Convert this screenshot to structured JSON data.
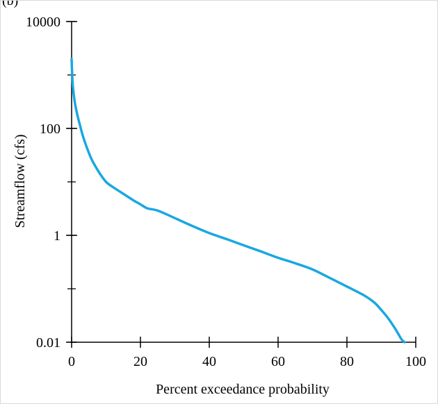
{
  "panel_label": "(b)",
  "chart_data": {
    "type": "line",
    "title": "",
    "xlabel": "Percent exceedance probability",
    "ylabel": "Streamflow (cfs)",
    "xlim": [
      0,
      100
    ],
    "ylim": [
      0.01,
      10000
    ],
    "yscale": "log",
    "xticks": [
      0,
      20,
      40,
      60,
      80,
      100
    ],
    "xtick_labels": [
      "0",
      "20",
      "40",
      "60",
      "80",
      "100"
    ],
    "yticks": [
      0.01,
      1,
      100,
      10000
    ],
    "ytick_labels": [
      "0.01",
      "1",
      "100",
      "10000"
    ],
    "grid": false,
    "legend": "none",
    "series": [
      {
        "color": "#1aa7e1",
        "x": [
          0,
          0.3,
          0.8,
          1.5,
          2.5,
          3.5,
          5,
          6,
          8,
          10,
          12,
          15,
          18,
          20,
          22,
          25,
          30,
          35,
          40,
          45,
          50,
          55,
          60,
          65,
          70,
          75,
          80,
          85,
          88,
          90,
          92,
          94,
          95,
          96,
          96.8
        ],
        "y": [
          2000,
          700,
          350,
          200,
          110,
          65,
          35,
          25,
          15,
          10,
          8,
          6,
          4.5,
          3.8,
          3.2,
          2.9,
          2.1,
          1.5,
          1.1,
          0.85,
          0.65,
          0.5,
          0.38,
          0.3,
          0.23,
          0.16,
          0.11,
          0.075,
          0.055,
          0.04,
          0.028,
          0.018,
          0.014,
          0.011,
          0.01
        ]
      }
    ]
  }
}
